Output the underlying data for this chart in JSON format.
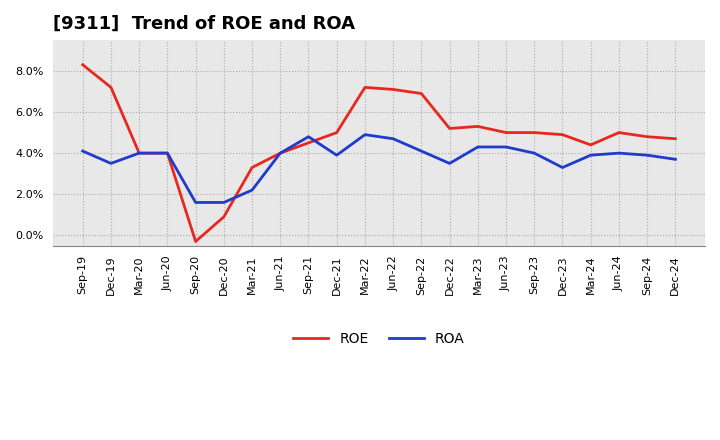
{
  "title": "[9311]  Trend of ROE and ROA",
  "labels": [
    "Sep-19",
    "Dec-19",
    "Mar-20",
    "Jun-20",
    "Sep-20",
    "Dec-20",
    "Mar-21",
    "Jun-21",
    "Sep-21",
    "Dec-21",
    "Mar-22",
    "Jun-22",
    "Sep-22",
    "Dec-22",
    "Mar-23",
    "Jun-23",
    "Sep-23",
    "Dec-23",
    "Mar-24",
    "Jun-24",
    "Sep-24",
    "Dec-24"
  ],
  "roe": [
    8.3,
    7.2,
    4.0,
    4.0,
    -0.3,
    0.9,
    3.3,
    4.0,
    4.5,
    5.0,
    7.2,
    7.1,
    6.9,
    5.2,
    5.3,
    5.0,
    5.0,
    4.9,
    4.4,
    5.0,
    4.8,
    4.7
  ],
  "roa": [
    4.1,
    3.5,
    4.0,
    4.0,
    1.6,
    1.6,
    2.2,
    4.0,
    4.8,
    3.9,
    4.9,
    4.7,
    4.1,
    3.5,
    4.3,
    4.3,
    4.0,
    3.3,
    3.9,
    4.0,
    3.9,
    3.7
  ],
  "roe_color": "#e8281e",
  "roa_color": "#1e3bcc",
  "ylim_min": -0.5,
  "ylim_max": 9.5,
  "yticks": [
    0.0,
    2.0,
    4.0,
    6.0,
    8.0
  ],
  "bg_color": "#e8e8e8",
  "grid_color": "#aaaaaa",
  "title_fontsize": 13,
  "legend_fontsize": 10,
  "tick_fontsize": 8
}
